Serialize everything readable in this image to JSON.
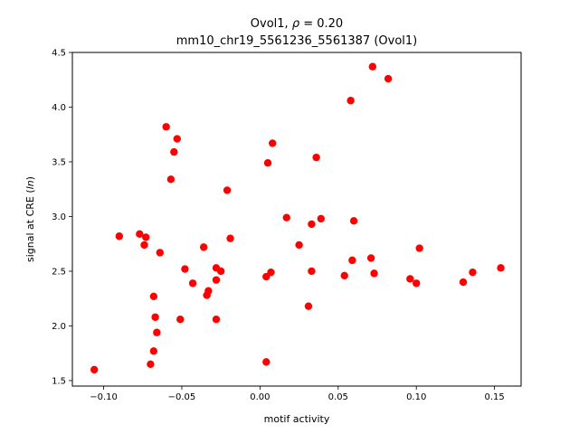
{
  "chart_data": {
    "type": "scatter",
    "title_line1_prefix": "Ovol1, ",
    "title_line1_rho": "ρ",
    "title_line1_suffix": " = 0.20",
    "title_line2": "mm10_chr19_5561236_5561387 (Ovol1)",
    "xlabel": "motif activity",
    "ylabel_prefix": "signal at CRE (",
    "ylabel_italic": "ln",
    "ylabel_suffix": ")",
    "xlim": [
      -0.12,
      0.167
    ],
    "ylim": [
      1.45,
      4.5
    ],
    "xticks": [
      -0.1,
      -0.05,
      0.0,
      0.05,
      0.1,
      0.15
    ],
    "xtick_labels": [
      "−0.10",
      "−0.05",
      "0.00",
      "0.05",
      "0.10",
      "0.15"
    ],
    "yticks": [
      1.5,
      2.0,
      2.5,
      3.0,
      3.5,
      4.0,
      4.5
    ],
    "ytick_labels": [
      "1.5",
      "2.0",
      "2.5",
      "3.0",
      "3.5",
      "4.0",
      "4.5"
    ],
    "grid": false,
    "marker_color": "#ff0000",
    "points": [
      {
        "x": -0.106,
        "y": 1.6
      },
      {
        "x": -0.09,
        "y": 2.82
      },
      {
        "x": -0.077,
        "y": 2.84
      },
      {
        "x": -0.074,
        "y": 2.74
      },
      {
        "x": -0.073,
        "y": 2.81
      },
      {
        "x": -0.07,
        "y": 1.65
      },
      {
        "x": -0.068,
        "y": 2.27
      },
      {
        "x": -0.068,
        "y": 1.77
      },
      {
        "x": -0.067,
        "y": 2.08
      },
      {
        "x": -0.066,
        "y": 1.94
      },
      {
        "x": -0.064,
        "y": 2.67
      },
      {
        "x": -0.06,
        "y": 3.82
      },
      {
        "x": -0.057,
        "y": 3.34
      },
      {
        "x": -0.055,
        "y": 3.59
      },
      {
        "x": -0.053,
        "y": 3.71
      },
      {
        "x": -0.051,
        "y": 2.06
      },
      {
        "x": -0.048,
        "y": 2.52
      },
      {
        "x": -0.043,
        "y": 2.39
      },
      {
        "x": -0.036,
        "y": 2.72
      },
      {
        "x": -0.034,
        "y": 2.28
      },
      {
        "x": -0.033,
        "y": 2.32
      },
      {
        "x": -0.028,
        "y": 2.53
      },
      {
        "x": -0.028,
        "y": 2.42
      },
      {
        "x": -0.028,
        "y": 2.06
      },
      {
        "x": -0.025,
        "y": 2.5
      },
      {
        "x": -0.021,
        "y": 3.24
      },
      {
        "x": -0.019,
        "y": 2.8
      },
      {
        "x": 0.004,
        "y": 1.67
      },
      {
        "x": 0.004,
        "y": 2.45
      },
      {
        "x": 0.005,
        "y": 3.49
      },
      {
        "x": 0.007,
        "y": 2.49
      },
      {
        "x": 0.008,
        "y": 3.67
      },
      {
        "x": 0.017,
        "y": 2.99
      },
      {
        "x": 0.025,
        "y": 2.74
      },
      {
        "x": 0.031,
        "y": 2.18
      },
      {
        "x": 0.033,
        "y": 2.93
      },
      {
        "x": 0.033,
        "y": 2.5
      },
      {
        "x": 0.036,
        "y": 3.54
      },
      {
        "x": 0.039,
        "y": 2.98
      },
      {
        "x": 0.054,
        "y": 2.46
      },
      {
        "x": 0.058,
        "y": 4.06
      },
      {
        "x": 0.059,
        "y": 2.6
      },
      {
        "x": 0.06,
        "y": 2.96
      },
      {
        "x": 0.071,
        "y": 2.62
      },
      {
        "x": 0.072,
        "y": 4.37
      },
      {
        "x": 0.073,
        "y": 2.48
      },
      {
        "x": 0.082,
        "y": 4.26
      },
      {
        "x": 0.096,
        "y": 2.43
      },
      {
        "x": 0.1,
        "y": 2.39
      },
      {
        "x": 0.102,
        "y": 2.71
      },
      {
        "x": 0.13,
        "y": 2.4
      },
      {
        "x": 0.136,
        "y": 2.49
      },
      {
        "x": 0.154,
        "y": 2.53
      }
    ]
  }
}
